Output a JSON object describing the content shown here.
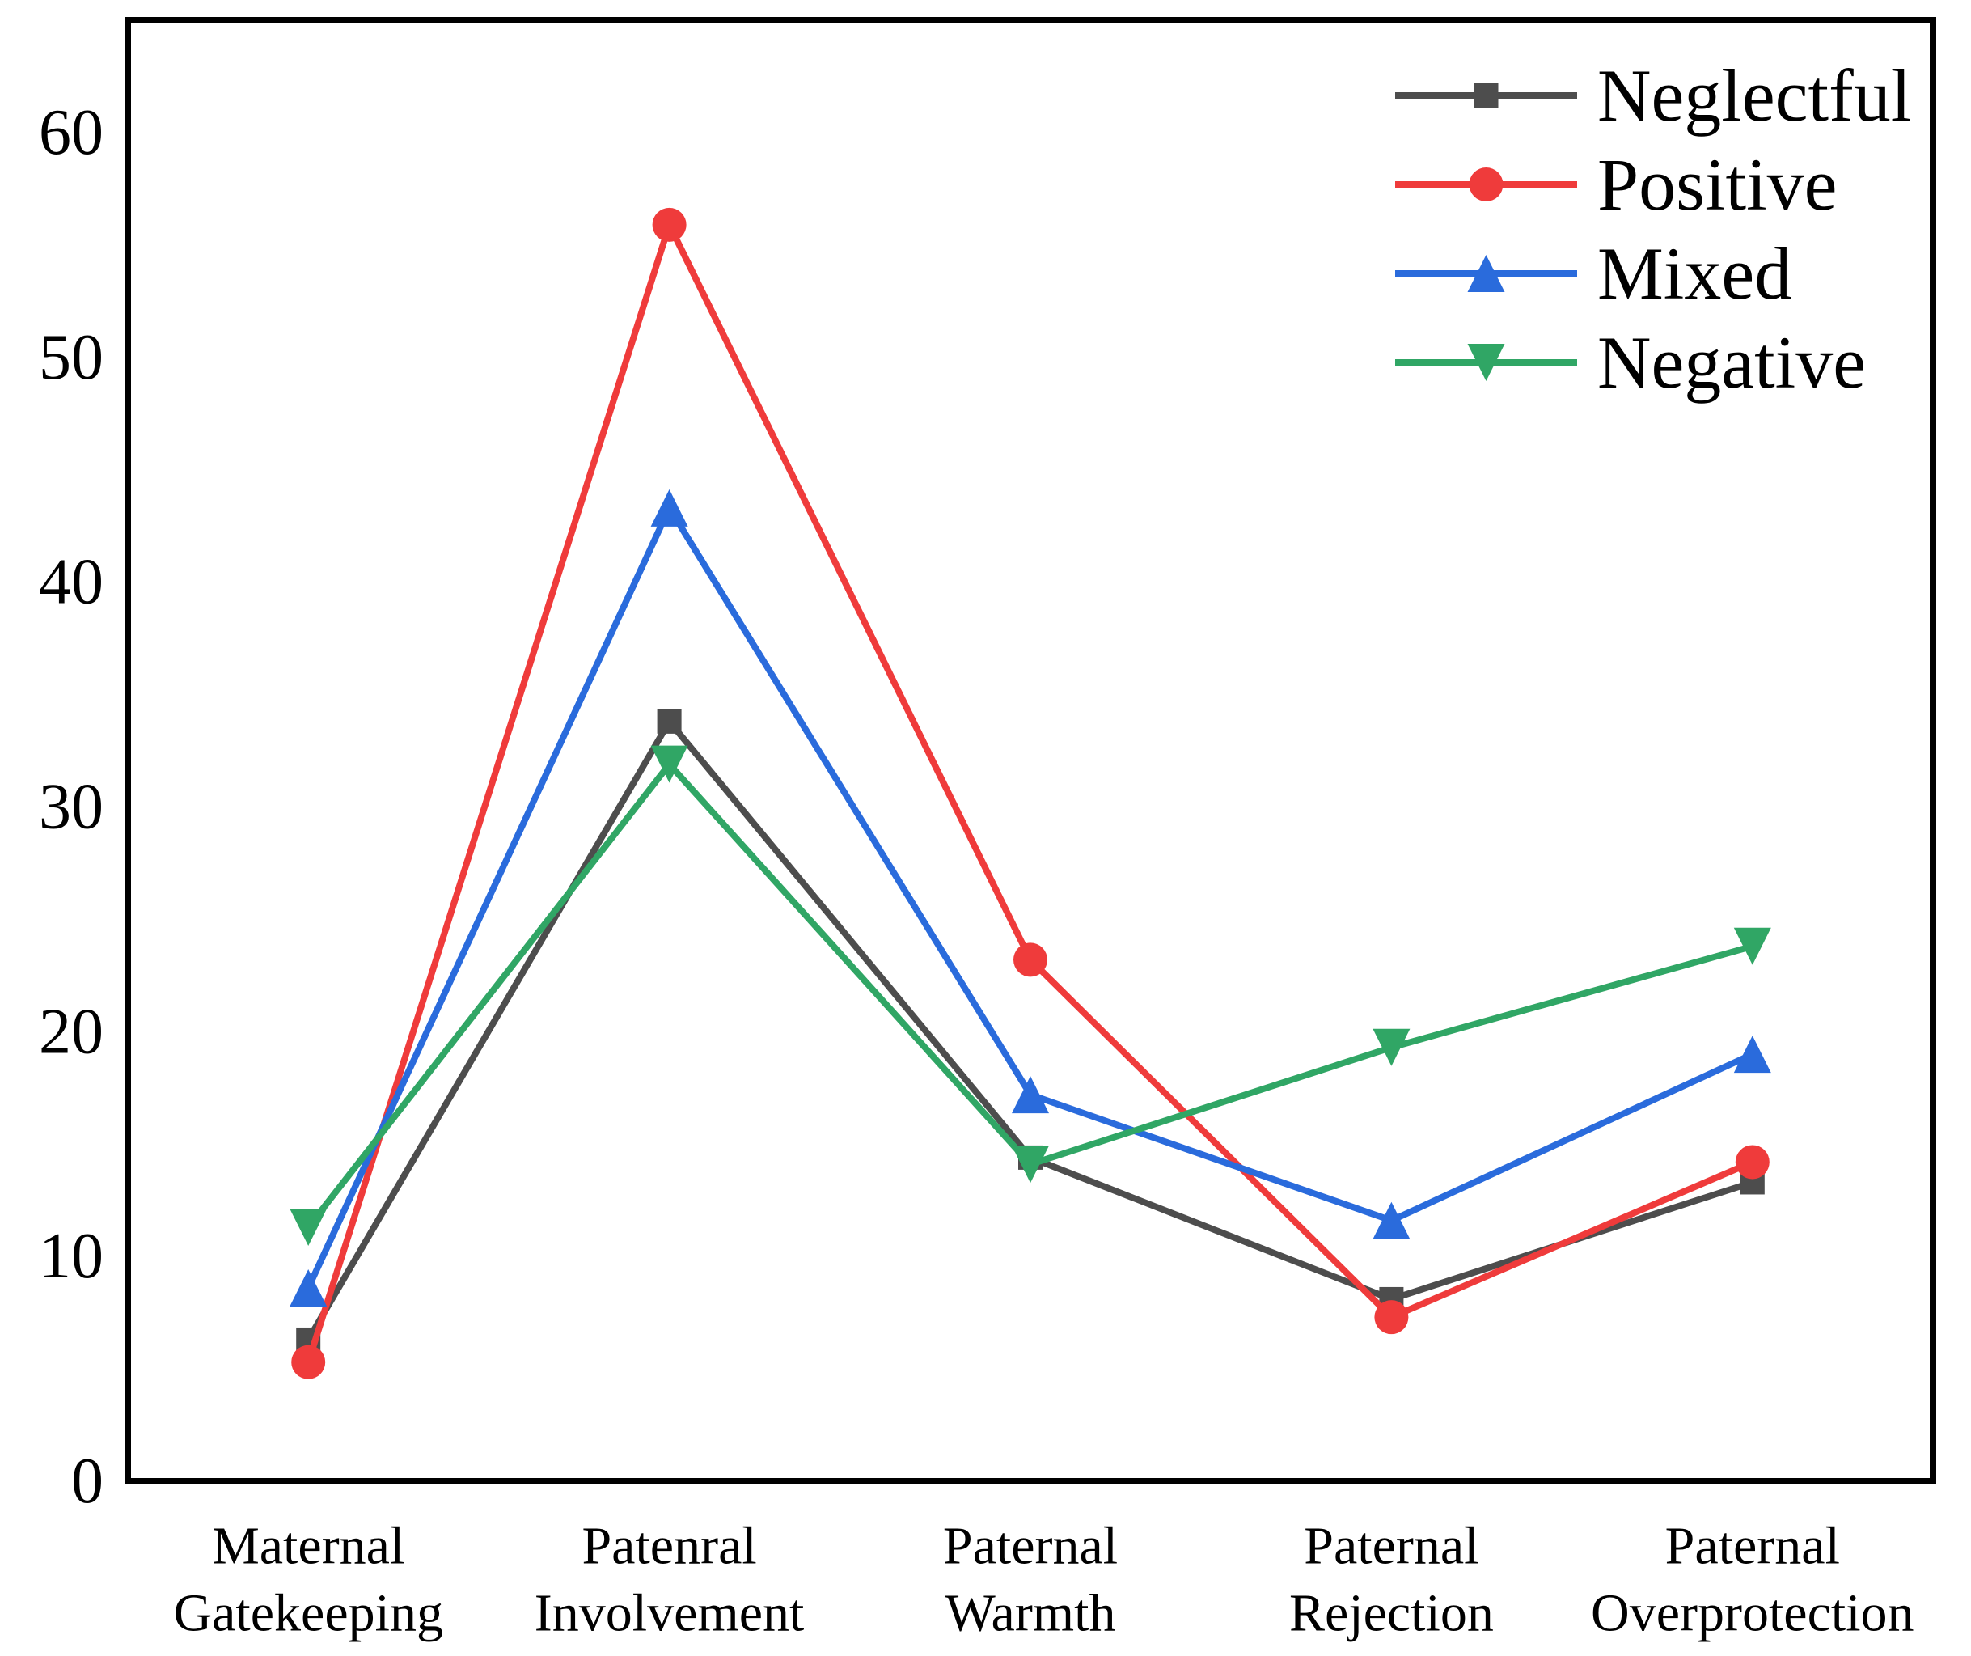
{
  "chart_data": {
    "type": "line",
    "title": "",
    "xlabel": "",
    "ylabel": "",
    "categories": [
      "Maternal\nGatekeeping",
      "Patenral\nInvolvement",
      "Paternal\nWarmth",
      "Paternal\nRejection",
      "Paternal\nOverprotection"
    ],
    "series": [
      {
        "name": "Neglectful",
        "color": "#4D4D4D",
        "marker": "square",
        "values": [
          6.3,
          33.8,
          14.4,
          8.1,
          13.3
        ]
      },
      {
        "name": "Positive",
        "color": "#EF3B3B",
        "marker": "circle",
        "values": [
          5.3,
          55.9,
          23.2,
          7.3,
          14.2
        ]
      },
      {
        "name": "Mixed",
        "color": "#2A6BDC",
        "marker": "triangle-up",
        "values": [
          8.6,
          43.3,
          17.2,
          11.6,
          19.0
        ]
      },
      {
        "name": "Negative",
        "color": "#30A665",
        "marker": "triangle-down",
        "values": [
          11.3,
          31.9,
          14.1,
          19.3,
          23.8
        ]
      }
    ],
    "ylim": [
      0,
      65
    ],
    "yticks": [
      0,
      10,
      20,
      30,
      40,
      50,
      60
    ],
    "grid": false,
    "legend_position": "top-right",
    "legend_labels": [
      "Neglectful",
      "Positive",
      "Mixed",
      "Negative"
    ],
    "axis_color": "#000000",
    "background_color": "#FFFFFF"
  }
}
